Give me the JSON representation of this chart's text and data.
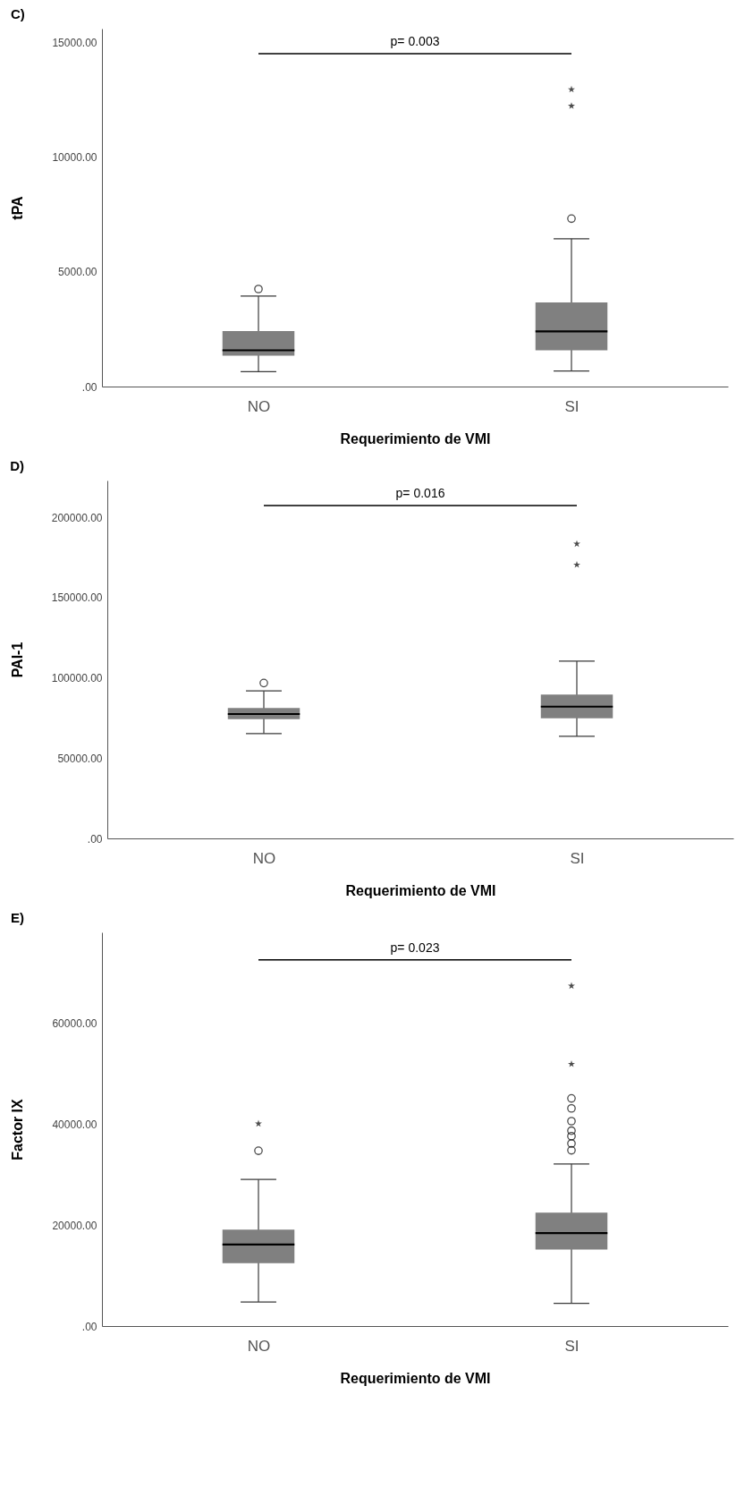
{
  "chart_data": [
    {
      "type": "box",
      "title": "C)",
      "xlabel": "Requerimiento de VMI",
      "ylabel": "tPA",
      "categories": [
        "NO",
        "SI"
      ],
      "ylim": [
        0,
        15600
      ],
      "yticks": [
        {
          "value": 0,
          "label": ".00"
        },
        {
          "value": 5000,
          "label": "5000.00"
        },
        {
          "value": 10000,
          "label": "10000.00"
        },
        {
          "value": 15000,
          "label": "15000.00"
        }
      ],
      "annotations": [
        "p= 0.003"
      ],
      "series": [
        {
          "type": "box",
          "color": "#808080",
          "boxes": [
            {
              "low": 650,
              "q1": 1350,
              "median": 1580,
              "q3": 2420,
              "high": 3940,
              "outliers": [
                4250
              ]
            },
            {
              "low": 680,
              "q1": 1580,
              "median": 2400,
              "q3": 3670,
              "high": 6440,
              "outliers": [
                7320
              ]
            }
          ]
        },
        {
          "type": "scatter",
          "marker": "star",
          "color": "#000000",
          "x": [
            "SI",
            "SI"
          ],
          "values": [
            12230,
            12950
          ]
        }
      ]
    },
    {
      "type": "box",
      "title": "D)",
      "xlabel": "Requerimiento de VMI",
      "ylabel": "PAI-1",
      "categories": [
        "NO",
        "SI"
      ],
      "ylim": [
        0,
        223000
      ],
      "yticks": [
        {
          "value": 0,
          "label": ".00"
        },
        {
          "value": 50000,
          "label": "50000.00"
        },
        {
          "value": 100000,
          "label": "100000.00"
        },
        {
          "value": 150000,
          "label": "150000.00"
        },
        {
          "value": 200000,
          "label": "200000.00"
        }
      ],
      "annotations": [
        "p= 0.016"
      ],
      "series": [
        {
          "type": "box",
          "color": "#808080",
          "boxes": [
            {
              "low": 65300,
              "q1": 74300,
              "median": 77500,
              "q3": 81200,
              "high": 91900,
              "outliers": [
                96800
              ]
            },
            {
              "low": 63600,
              "q1": 74900,
              "median": 82100,
              "q3": 89600,
              "high": 110400
            }
          ]
        },
        {
          "type": "scatter",
          "marker": "star",
          "color": "#000000",
          "x": [
            "SI",
            "SI"
          ],
          "values": [
            170500,
            183500
          ]
        }
      ]
    },
    {
      "type": "box",
      "title": "E)",
      "xlabel": "Requerimiento de VMI",
      "ylabel": "Factor IX",
      "categories": [
        "NO",
        "SI"
      ],
      "ylim": [
        0,
        78000
      ],
      "yticks": [
        {
          "value": 0,
          "label": ".00"
        },
        {
          "value": 20000,
          "label": "20000.00"
        },
        {
          "value": 40000,
          "label": "40000.00"
        },
        {
          "value": 60000,
          "label": "60000.00"
        }
      ],
      "annotations": [
        "p= 0.023"
      ],
      "series": [
        {
          "type": "box",
          "color": "#808080",
          "boxes": [
            {
              "low": 4780,
              "q1": 12450,
              "median": 16150,
              "q3": 19120,
              "high": 29050,
              "outliers": [
                34730
              ]
            },
            {
              "low": 4510,
              "q1": 15150,
              "median": 18400,
              "q3": 22460,
              "high": 32120,
              "outliers": [
                34820,
                36170,
                37620,
                38700,
                40600,
                43120,
                45100
              ]
            }
          ]
        },
        {
          "type": "scatter",
          "marker": "star",
          "color": "#000000",
          "x": [
            "NO",
            "SI",
            "SI"
          ],
          "values": [
            40100,
            51900,
            67400
          ]
        }
      ]
    }
  ]
}
